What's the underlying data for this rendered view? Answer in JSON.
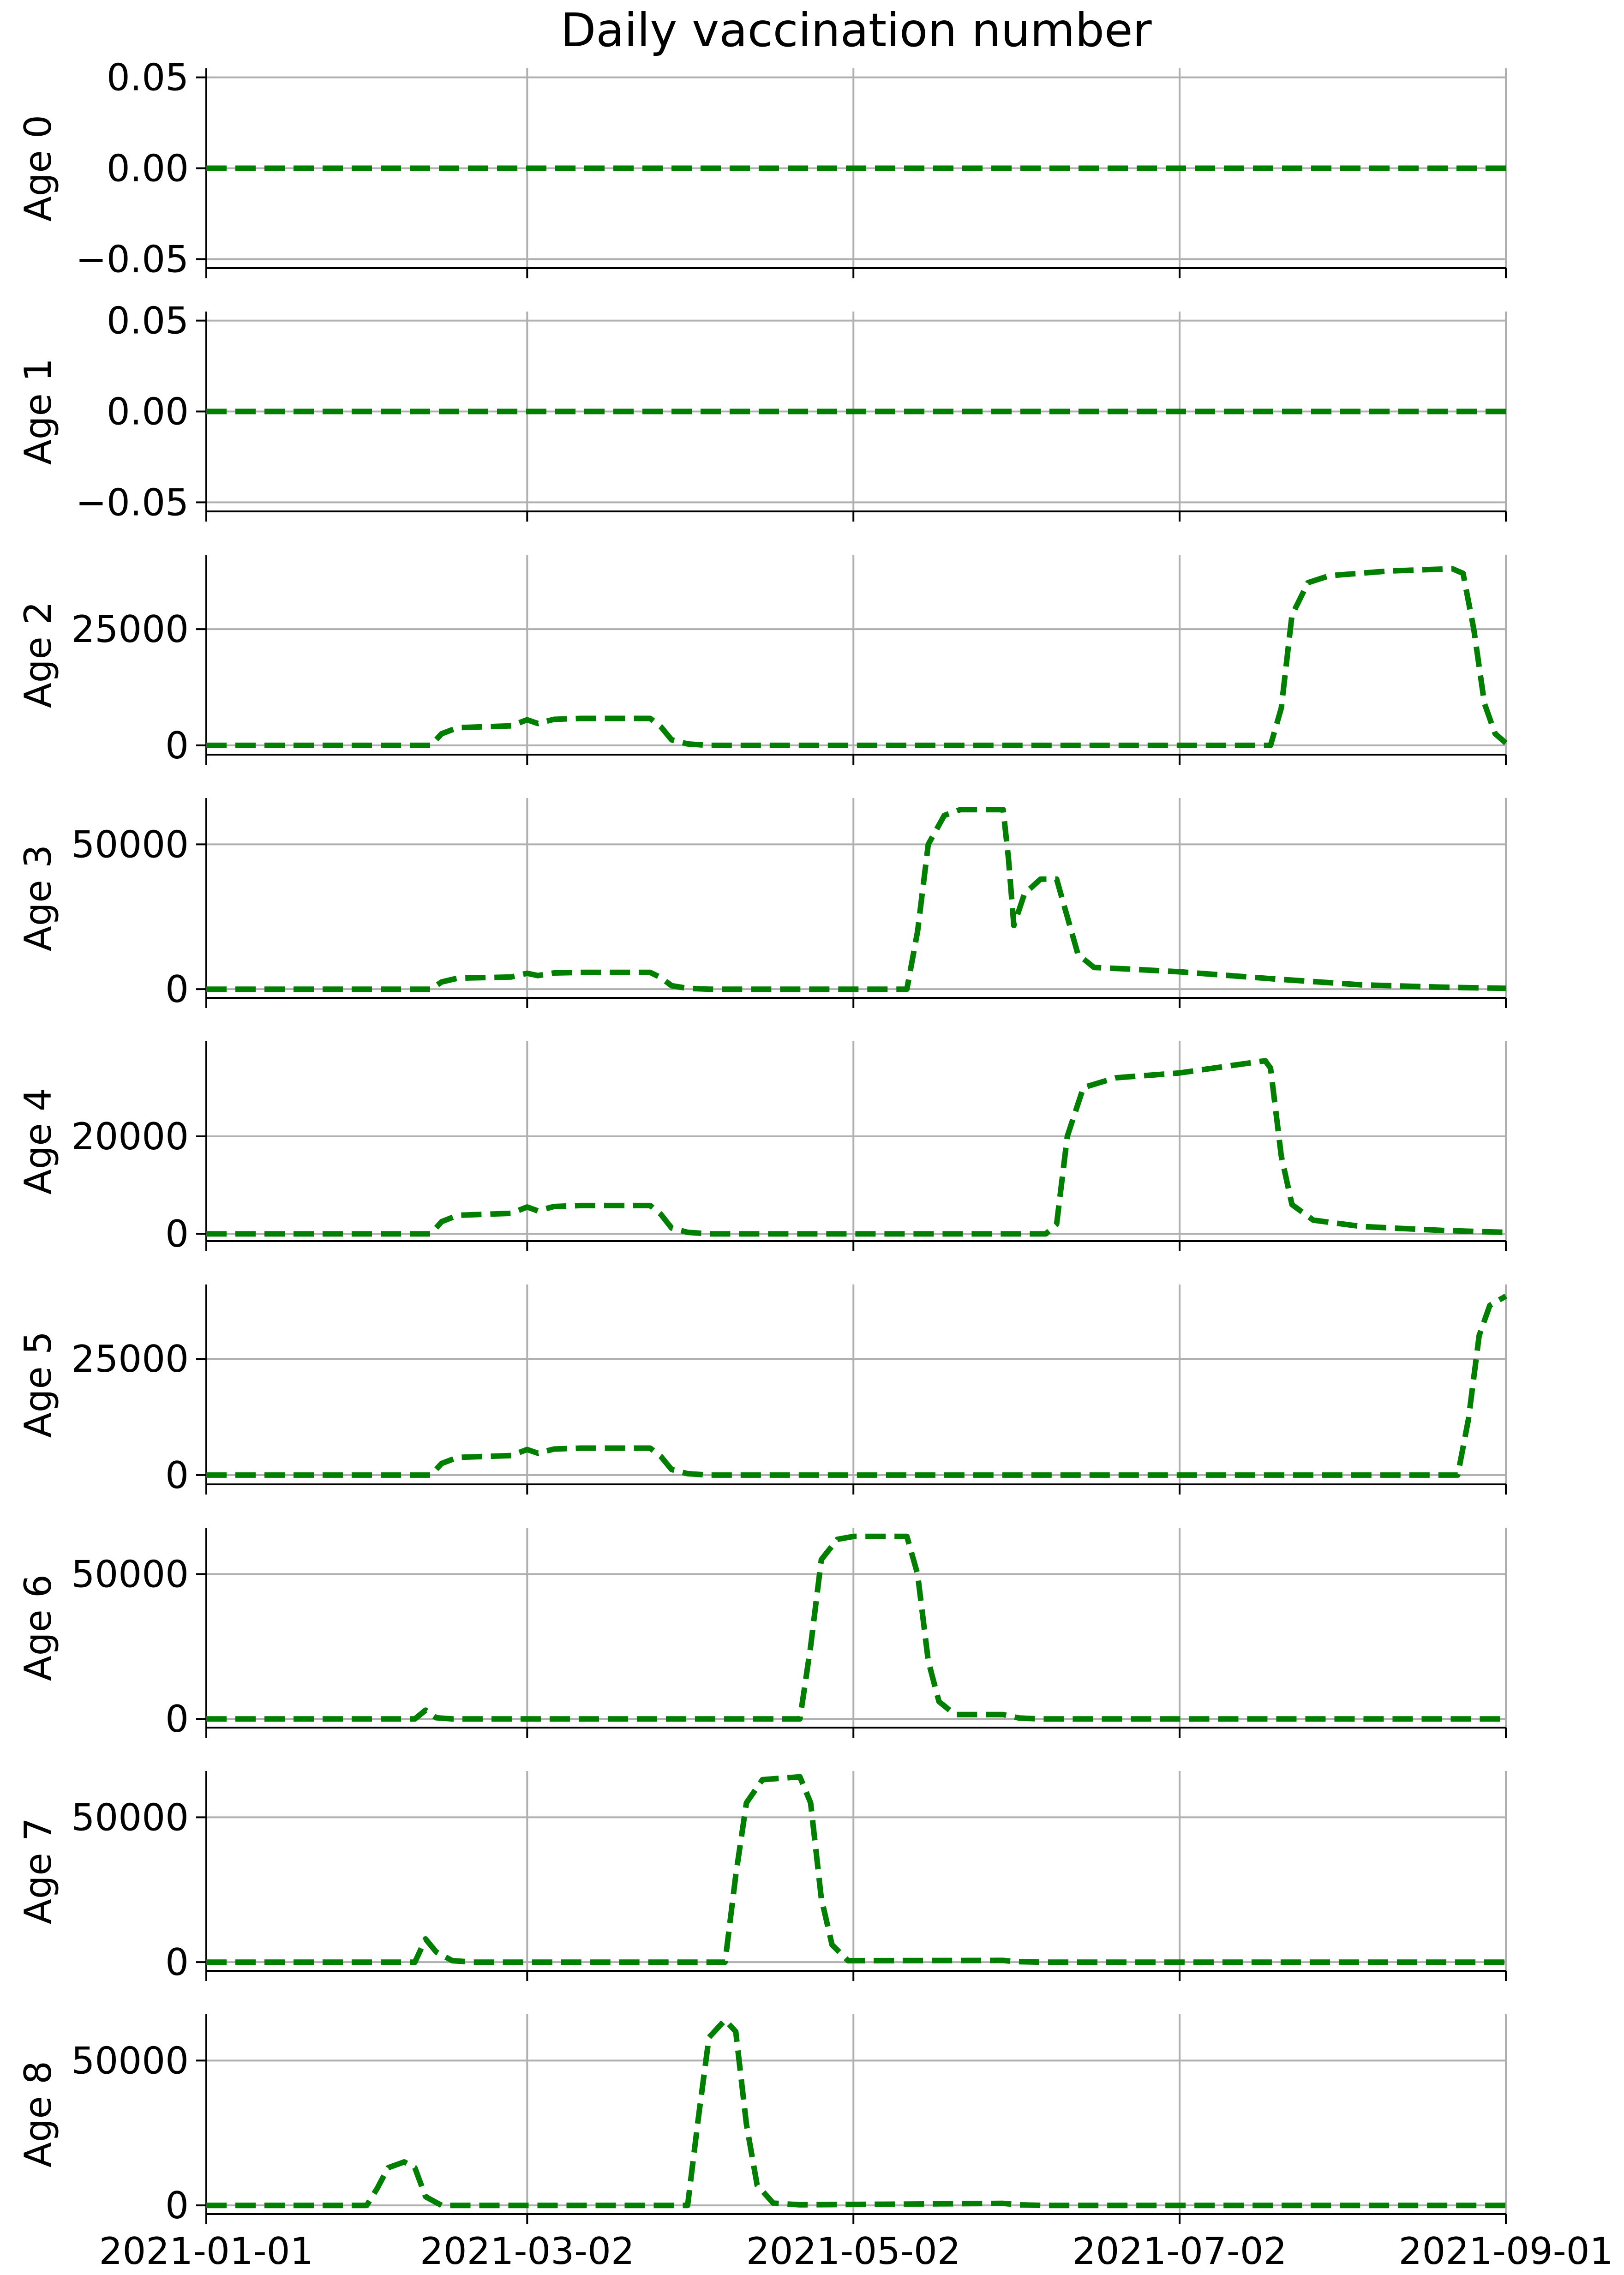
{
  "figure": {
    "title": "Daily vaccination number",
    "line_color": "#007f00",
    "grid_color": "#b0b0b0"
  },
  "chart_data": [
    {
      "type": "line",
      "ylabel": "Age 0",
      "ylim": [
        -0.055,
        0.055
      ],
      "yticks": [
        0.05,
        0.0,
        -0.05
      ],
      "ytick_labels": [
        "0.05",
        "0.00",
        "−0.05"
      ],
      "xlim": [
        "2021-01-01",
        "2021-09-01"
      ],
      "xticks": [
        "2021-01-01",
        "2021-03-02",
        "2021-05-02",
        "2021-07-02",
        "2021-09-01"
      ],
      "grid": true,
      "series": [
        {
          "style": "dashed",
          "color": "#007f00",
          "points": [
            [
              "2021-01-01",
              0
            ],
            [
              "2021-09-01",
              0
            ]
          ]
        }
      ]
    },
    {
      "type": "line",
      "ylabel": "Age 1",
      "ylim": [
        -0.055,
        0.055
      ],
      "yticks": [
        0.05,
        0.0,
        -0.05
      ],
      "ytick_labels": [
        "0.05",
        "0.00",
        "−0.05"
      ],
      "xlim": [
        "2021-01-01",
        "2021-09-01"
      ],
      "xticks": [
        "2021-01-01",
        "2021-03-02",
        "2021-05-02",
        "2021-07-02",
        "2021-09-01"
      ],
      "grid": true,
      "series": [
        {
          "style": "dashed",
          "color": "#007f00",
          "points": [
            [
              "2021-01-01",
              0
            ],
            [
              "2021-09-01",
              0
            ]
          ]
        }
      ]
    },
    {
      "type": "line",
      "ylabel": "Age 2",
      "ylim": [
        -2000,
        41000
      ],
      "yticks": [
        0,
        25000
      ],
      "ytick_labels": [
        "0",
        "25000"
      ],
      "xlim": [
        "2021-01-01",
        "2021-09-01"
      ],
      "xticks": [
        "2021-01-01",
        "2021-03-02",
        "2021-05-02",
        "2021-07-02",
        "2021-09-01"
      ],
      "grid": true,
      "series": [
        {
          "style": "dashed",
          "color": "#007f00",
          "points": [
            [
              "2021-01-01",
              0
            ],
            [
              "2021-02-12",
              0
            ],
            [
              "2021-02-14",
              2500
            ],
            [
              "2021-02-17",
              3800
            ],
            [
              "2021-02-27",
              4200
            ],
            [
              "2021-03-02",
              5500
            ],
            [
              "2021-03-04",
              4700
            ],
            [
              "2021-03-07",
              5600
            ],
            [
              "2021-03-12",
              5800
            ],
            [
              "2021-03-25",
              5800
            ],
            [
              "2021-03-27",
              4000
            ],
            [
              "2021-03-29",
              1200
            ],
            [
              "2021-04-01",
              300
            ],
            [
              "2021-04-05",
              0
            ],
            [
              "2021-07-19",
              0
            ],
            [
              "2021-07-21",
              8000
            ],
            [
              "2021-07-23",
              28000
            ],
            [
              "2021-07-26",
              35000
            ],
            [
              "2021-07-30",
              36500
            ],
            [
              "2021-08-10",
              37500
            ],
            [
              "2021-08-22",
              38000
            ],
            [
              "2021-08-24",
              37000
            ],
            [
              "2021-08-26",
              25000
            ],
            [
              "2021-08-28",
              9000
            ],
            [
              "2021-08-30",
              2500
            ],
            [
              "2021-09-01",
              500
            ]
          ]
        }
      ]
    },
    {
      "type": "line",
      "ylabel": "Age 3",
      "ylim": [
        -3000,
        66000
      ],
      "yticks": [
        0,
        50000
      ],
      "ytick_labels": [
        "0",
        "50000"
      ],
      "xlim": [
        "2021-01-01",
        "2021-09-01"
      ],
      "xticks": [
        "2021-01-01",
        "2021-03-02",
        "2021-05-02",
        "2021-07-02",
        "2021-09-01"
      ],
      "grid": true,
      "series": [
        {
          "style": "dashed",
          "color": "#007f00",
          "points": [
            [
              "2021-01-01",
              0
            ],
            [
              "2021-02-12",
              0
            ],
            [
              "2021-02-14",
              2500
            ],
            [
              "2021-02-17",
              3800
            ],
            [
              "2021-02-27",
              4200
            ],
            [
              "2021-03-02",
              5500
            ],
            [
              "2021-03-04",
              4700
            ],
            [
              "2021-03-07",
              5600
            ],
            [
              "2021-03-12",
              5800
            ],
            [
              "2021-03-25",
              5800
            ],
            [
              "2021-03-27",
              4000
            ],
            [
              "2021-03-29",
              1200
            ],
            [
              "2021-04-01",
              300
            ],
            [
              "2021-04-05",
              0
            ],
            [
              "2021-05-12",
              0
            ],
            [
              "2021-05-14",
              20000
            ],
            [
              "2021-05-16",
              50000
            ],
            [
              "2021-05-19",
              60000
            ],
            [
              "2021-05-22",
              62000
            ],
            [
              "2021-05-30",
              62000
            ],
            [
              "2021-05-31",
              45000
            ],
            [
              "2021-06-01",
              22000
            ],
            [
              "2021-06-03",
              33000
            ],
            [
              "2021-06-06",
              38000
            ],
            [
              "2021-06-09",
              38000
            ],
            [
              "2021-06-11",
              25000
            ],
            [
              "2021-06-13",
              12000
            ],
            [
              "2021-06-16",
              7500
            ],
            [
              "2021-06-22",
              7000
            ],
            [
              "2021-07-02",
              6000
            ],
            [
              "2021-07-20",
              3500
            ],
            [
              "2021-08-05",
              1500
            ],
            [
              "2021-08-20",
              700
            ],
            [
              "2021-09-01",
              300
            ]
          ]
        }
      ]
    },
    {
      "type": "line",
      "ylabel": "Age 4",
      "ylim": [
        -1500,
        39500
      ],
      "yticks": [
        0,
        20000
      ],
      "ytick_labels": [
        "0",
        "20000"
      ],
      "xlim": [
        "2021-01-01",
        "2021-09-01"
      ],
      "xticks": [
        "2021-01-01",
        "2021-03-02",
        "2021-05-02",
        "2021-07-02",
        "2021-09-01"
      ],
      "grid": true,
      "series": [
        {
          "style": "dashed",
          "color": "#007f00",
          "points": [
            [
              "2021-01-01",
              0
            ],
            [
              "2021-02-12",
              0
            ],
            [
              "2021-02-14",
              2500
            ],
            [
              "2021-02-17",
              3800
            ],
            [
              "2021-02-27",
              4200
            ],
            [
              "2021-03-02",
              5500
            ],
            [
              "2021-03-04",
              4700
            ],
            [
              "2021-03-07",
              5600
            ],
            [
              "2021-03-12",
              5800
            ],
            [
              "2021-03-25",
              5800
            ],
            [
              "2021-03-27",
              4000
            ],
            [
              "2021-03-29",
              1200
            ],
            [
              "2021-04-01",
              300
            ],
            [
              "2021-04-05",
              0
            ],
            [
              "2021-06-07",
              0
            ],
            [
              "2021-06-09",
              2000
            ],
            [
              "2021-06-11",
              20000
            ],
            [
              "2021-06-14",
              30000
            ],
            [
              "2021-06-20",
              32000
            ],
            [
              "2021-07-02",
              33000
            ],
            [
              "2021-07-18",
              35500
            ],
            [
              "2021-07-19",
              34000
            ],
            [
              "2021-07-21",
              16000
            ],
            [
              "2021-07-23",
              6000
            ],
            [
              "2021-07-27",
              2800
            ],
            [
              "2021-08-05",
              1500
            ],
            [
              "2021-08-20",
              700
            ],
            [
              "2021-09-01",
              300
            ]
          ]
        }
      ]
    },
    {
      "type": "line",
      "ylabel": "Age 5",
      "ylim": [
        -2000,
        41000
      ],
      "yticks": [
        0,
        25000
      ],
      "ytick_labels": [
        "0",
        "25000"
      ],
      "xlim": [
        "2021-01-01",
        "2021-09-01"
      ],
      "xticks": [
        "2021-01-01",
        "2021-03-02",
        "2021-05-02",
        "2021-07-02",
        "2021-09-01"
      ],
      "grid": true,
      "series": [
        {
          "style": "dashed",
          "color": "#007f00",
          "points": [
            [
              "2021-01-01",
              0
            ],
            [
              "2021-02-12",
              0
            ],
            [
              "2021-02-14",
              2500
            ],
            [
              "2021-02-17",
              3800
            ],
            [
              "2021-02-27",
              4200
            ],
            [
              "2021-03-02",
              5500
            ],
            [
              "2021-03-04",
              4700
            ],
            [
              "2021-03-07",
              5600
            ],
            [
              "2021-03-12",
              5800
            ],
            [
              "2021-03-25",
              5800
            ],
            [
              "2021-03-27",
              4000
            ],
            [
              "2021-03-29",
              1200
            ],
            [
              "2021-04-01",
              300
            ],
            [
              "2021-04-05",
              0
            ],
            [
              "2021-08-23",
              0
            ],
            [
              "2021-08-25",
              12000
            ],
            [
              "2021-08-27",
              30000
            ],
            [
              "2021-08-29",
              36500
            ],
            [
              "2021-09-01",
              38500
            ]
          ]
        }
      ]
    },
    {
      "type": "line",
      "ylabel": "Age 6",
      "ylim": [
        -3000,
        66000
      ],
      "yticks": [
        0,
        50000
      ],
      "ytick_labels": [
        "0",
        "50000"
      ],
      "xlim": [
        "2021-01-01",
        "2021-09-01"
      ],
      "xticks": [
        "2021-01-01",
        "2021-03-02",
        "2021-05-02",
        "2021-07-02",
        "2021-09-01"
      ],
      "grid": true,
      "series": [
        {
          "style": "dashed",
          "color": "#007f00",
          "points": [
            [
              "2021-01-01",
              0
            ],
            [
              "2021-02-09",
              0
            ],
            [
              "2021-02-11",
              3000
            ],
            [
              "2021-02-13",
              400
            ],
            [
              "2021-02-16",
              0
            ],
            [
              "2021-04-22",
              0
            ],
            [
              "2021-04-24",
              25000
            ],
            [
              "2021-04-26",
              55000
            ],
            [
              "2021-04-29",
              62000
            ],
            [
              "2021-05-02",
              63000
            ],
            [
              "2021-05-12",
              63000
            ],
            [
              "2021-05-14",
              50000
            ],
            [
              "2021-05-16",
              20000
            ],
            [
              "2021-05-18",
              6000
            ],
            [
              "2021-05-21",
              1500
            ],
            [
              "2021-05-30",
              1500
            ],
            [
              "2021-06-02",
              300
            ],
            [
              "2021-06-06",
              0
            ],
            [
              "2021-09-01",
              0
            ]
          ]
        }
      ]
    },
    {
      "type": "line",
      "ylabel": "Age 7",
      "ylim": [
        -3000,
        66000
      ],
      "yticks": [
        0,
        50000
      ],
      "ytick_labels": [
        "0",
        "50000"
      ],
      "xlim": [
        "2021-01-01",
        "2021-09-01"
      ],
      "xticks": [
        "2021-01-01",
        "2021-03-02",
        "2021-05-02",
        "2021-07-02",
        "2021-09-01"
      ],
      "grid": true,
      "series": [
        {
          "style": "dashed",
          "color": "#007f00",
          "points": [
            [
              "2021-01-01",
              0
            ],
            [
              "2021-02-09",
              0
            ],
            [
              "2021-02-11",
              8000
            ],
            [
              "2021-02-13",
              3500
            ],
            [
              "2021-02-16",
              500
            ],
            [
              "2021-02-20",
              0
            ],
            [
              "2021-04-08",
              0
            ],
            [
              "2021-04-10",
              30000
            ],
            [
              "2021-04-12",
              55000
            ],
            [
              "2021-04-15",
              63000
            ],
            [
              "2021-04-22",
              64000
            ],
            [
              "2021-04-24",
              55000
            ],
            [
              "2021-04-26",
              22000
            ],
            [
              "2021-04-28",
              6000
            ],
            [
              "2021-05-01",
              500
            ],
            [
              "2021-05-30",
              600
            ],
            [
              "2021-06-01",
              200
            ],
            [
              "2021-06-06",
              0
            ],
            [
              "2021-09-01",
              0
            ]
          ]
        }
      ]
    },
    {
      "type": "line",
      "ylabel": "Age 8",
      "ylim": [
        -3000,
        66000
      ],
      "yticks": [
        0,
        50000
      ],
      "ytick_labels": [
        "0",
        "50000"
      ],
      "xlim": [
        "2021-01-01",
        "2021-09-01"
      ],
      "xticks": [
        "2021-01-01",
        "2021-03-02",
        "2021-05-02",
        "2021-07-02",
        "2021-09-01"
      ],
      "xtick_labels": [
        "2021-01-01",
        "2021-03-02",
        "2021-05-02",
        "2021-07-02",
        "2021-09-01"
      ],
      "grid": true,
      "series": [
        {
          "style": "dashed",
          "color": "#007f00",
          "points": [
            [
              "2021-01-01",
              0
            ],
            [
              "2021-01-31",
              0
            ],
            [
              "2021-02-02",
              6000
            ],
            [
              "2021-02-04",
              13000
            ],
            [
              "2021-02-07",
              15000
            ],
            [
              "2021-02-09",
              13000
            ],
            [
              "2021-02-11",
              3000
            ],
            [
              "2021-02-14",
              0
            ],
            [
              "2021-04-01",
              0
            ],
            [
              "2021-04-03",
              30000
            ],
            [
              "2021-04-05",
              58000
            ],
            [
              "2021-04-08",
              64000
            ],
            [
              "2021-04-10",
              60000
            ],
            [
              "2021-04-12",
              28000
            ],
            [
              "2021-04-14",
              7000
            ],
            [
              "2021-04-17",
              800
            ],
            [
              "2021-04-22",
              200
            ],
            [
              "2021-05-30",
              700
            ],
            [
              "2021-06-02",
              200
            ],
            [
              "2021-06-06",
              0
            ],
            [
              "2021-09-01",
              0
            ]
          ]
        }
      ]
    }
  ]
}
